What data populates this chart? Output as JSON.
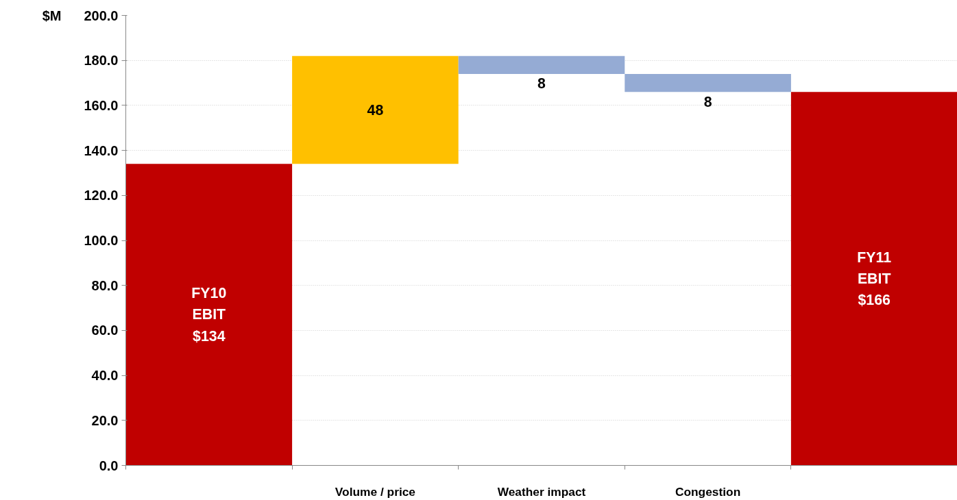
{
  "chart_data": {
    "type": "bar",
    "ylabel": "$M",
    "categories": [
      null,
      "Volume / price",
      "Weather impact",
      "Congestion",
      null
    ],
    "values": [
      134,
      48,
      -8,
      -8,
      166
    ],
    "base": [
      0,
      134,
      182,
      174,
      0
    ],
    "colors": [
      "#c00000",
      "#ffc000",
      "#95abd4",
      "#95abd4",
      "#c00000"
    ],
    "value_labels": [
      "FY10\nEBIT\n$134",
      "48",
      "8",
      "8",
      "FY11\nEBIT\n$166"
    ],
    "ylim": [
      0,
      200
    ],
    "yticks": [
      {
        "value": 0,
        "label": "0.0"
      },
      {
        "value": 20,
        "label": "20.0"
      },
      {
        "value": 40,
        "label": "40.0"
      },
      {
        "value": 60,
        "label": "60.0"
      },
      {
        "value": 80,
        "label": "80.0"
      },
      {
        "value": 100,
        "label": "100.0"
      },
      {
        "value": 120,
        "label": "120.0"
      },
      {
        "value": 140,
        "label": "140.0"
      },
      {
        "value": 160,
        "label": "160.0"
      },
      {
        "value": 180,
        "label": "180.0"
      },
      {
        "value": 200,
        "label": "200.0"
      }
    ],
    "grid": "y"
  }
}
